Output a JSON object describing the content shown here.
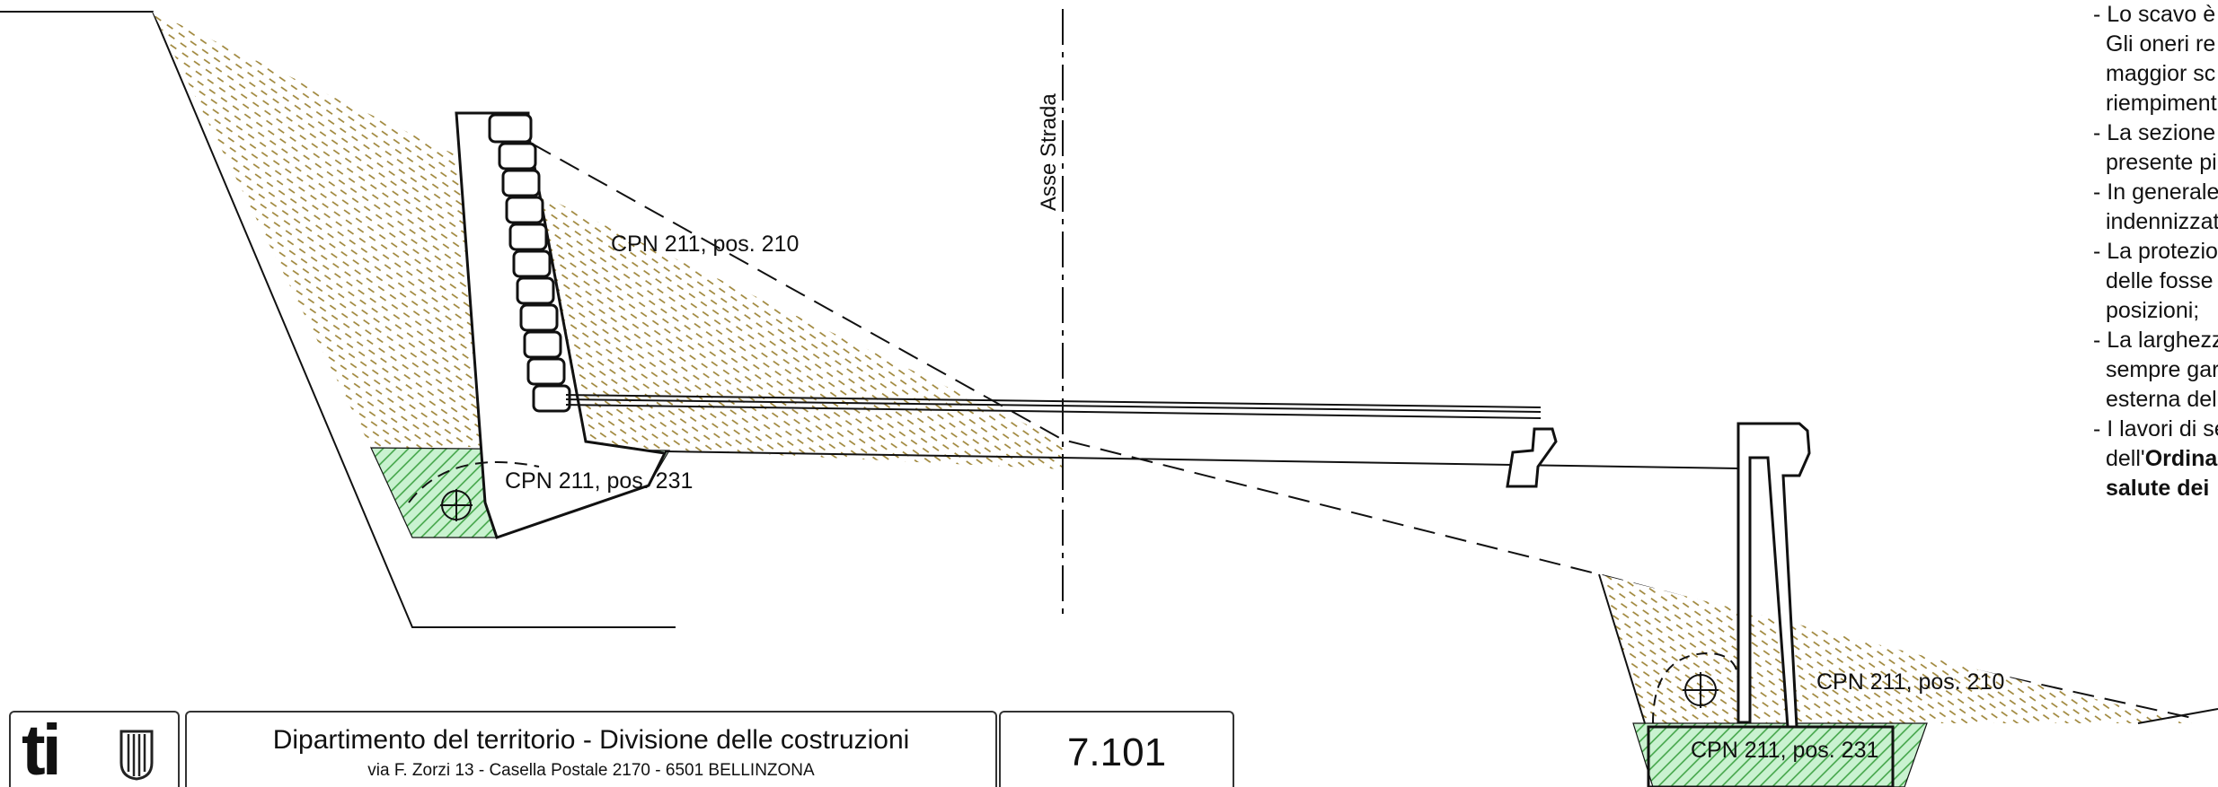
{
  "labels": {
    "cpn_210_left": "CPN 211, pos. 210",
    "cpn_231_left": "CPN 211, pos. 231",
    "cpn_210_right": "CPN 211, pos. 210",
    "cpn_231_right": "CPN 211, pos. 231",
    "axis": "Asse Strada"
  },
  "notes": [
    "- Lo scavo è",
    "Gli oneri re",
    "maggior sc",
    "riempiment",
    "- La sezione",
    "presente pi",
    "- In generale",
    "indennizzat",
    "- La protezio",
    "delle fosse",
    "posizioni;",
    "- La larghezz",
    "sempre gar",
    "esterna del",
    "- I lavori di se"
  ],
  "notes_last_prefix": "dell'",
  "notes_last_bold": "Ordina",
  "notes_final_bold": "salute dei",
  "title_block": {
    "logo_text": "ti",
    "department": "Dipartimento del territorio - Divisione delle costruzioni",
    "address": "via F. Zorzi 13 - Casella Postale 2170 - 6501 BELLINZONA",
    "drawing_number": "7.101"
  },
  "colors": {
    "soil_hatch": "#9a8030",
    "gravel_hatch": "#3aa040",
    "gravel_fill": "#bff0c8",
    "line": "#111111"
  }
}
